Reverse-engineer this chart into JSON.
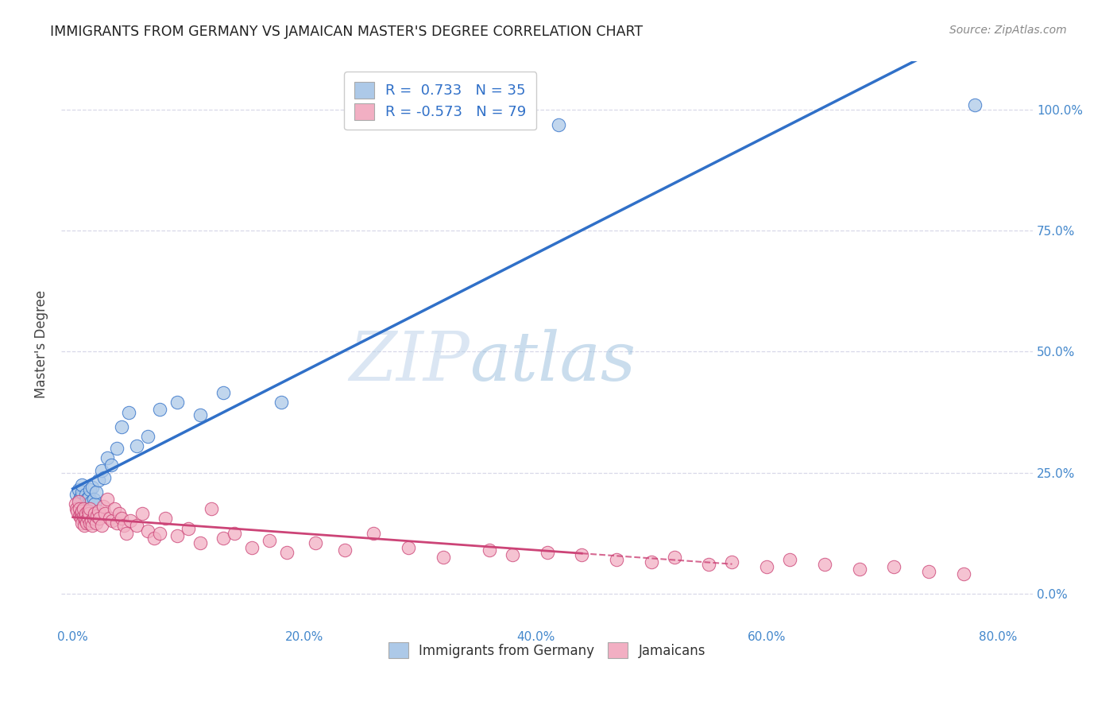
{
  "title": "IMMIGRANTS FROM GERMANY VS JAMAICAN MASTER'S DEGREE CORRELATION CHART",
  "source": "Source: ZipAtlas.com",
  "xlabel_ticks": [
    "0.0%",
    "20.0%",
    "40.0%",
    "60.0%",
    "80.0%"
  ],
  "xlabel_vals": [
    0.0,
    0.2,
    0.4,
    0.6,
    0.8
  ],
  "ylabel_ticks": [
    "0.0%",
    "25.0%",
    "50.0%",
    "75.0%",
    "100.0%"
  ],
  "ylabel_vals": [
    0.0,
    0.25,
    0.5,
    0.75,
    1.0
  ],
  "xlim": [
    -0.01,
    0.83
  ],
  "ylim": [
    -0.07,
    1.1
  ],
  "blue_R": 0.733,
  "blue_N": 35,
  "pink_R": -0.573,
  "pink_N": 79,
  "blue_color": "#adc9e8",
  "pink_color": "#f2afc3",
  "blue_line_color": "#3070c8",
  "pink_line_color": "#cc4477",
  "watermark_zip": "ZIP",
  "watermark_atlas": "atlas",
  "ylabel": "Master's Degree",
  "blue_scatter_x": [
    0.003,
    0.005,
    0.006,
    0.007,
    0.008,
    0.008,
    0.009,
    0.01,
    0.011,
    0.012,
    0.013,
    0.014,
    0.015,
    0.016,
    0.017,
    0.018,
    0.019,
    0.02,
    0.022,
    0.025,
    0.027,
    0.03,
    0.033,
    0.038,
    0.042,
    0.048,
    0.055,
    0.065,
    0.075,
    0.09,
    0.11,
    0.13,
    0.18,
    0.42,
    0.78
  ],
  "blue_scatter_y": [
    0.205,
    0.215,
    0.195,
    0.2,
    0.21,
    0.225,
    0.185,
    0.175,
    0.205,
    0.195,
    0.185,
    0.2,
    0.215,
    0.19,
    0.22,
    0.195,
    0.185,
    0.21,
    0.235,
    0.255,
    0.24,
    0.28,
    0.265,
    0.3,
    0.345,
    0.375,
    0.305,
    0.325,
    0.38,
    0.395,
    0.37,
    0.415,
    0.395,
    0.97,
    1.01
  ],
  "pink_scatter_x": [
    0.002,
    0.003,
    0.004,
    0.005,
    0.006,
    0.006,
    0.007,
    0.007,
    0.008,
    0.008,
    0.009,
    0.009,
    0.01,
    0.01,
    0.011,
    0.011,
    0.012,
    0.013,
    0.013,
    0.014,
    0.015,
    0.015,
    0.016,
    0.017,
    0.018,
    0.019,
    0.02,
    0.021,
    0.022,
    0.023,
    0.025,
    0.026,
    0.028,
    0.03,
    0.032,
    0.034,
    0.036,
    0.038,
    0.04,
    0.042,
    0.044,
    0.046,
    0.05,
    0.055,
    0.06,
    0.065,
    0.07,
    0.075,
    0.08,
    0.09,
    0.1,
    0.11,
    0.12,
    0.13,
    0.14,
    0.155,
    0.17,
    0.185,
    0.21,
    0.235,
    0.26,
    0.29,
    0.32,
    0.36,
    0.38,
    0.41,
    0.44,
    0.47,
    0.5,
    0.52,
    0.55,
    0.57,
    0.6,
    0.62,
    0.65,
    0.68,
    0.71,
    0.74,
    0.77
  ],
  "pink_scatter_y": [
    0.185,
    0.175,
    0.17,
    0.19,
    0.16,
    0.175,
    0.165,
    0.155,
    0.17,
    0.145,
    0.16,
    0.175,
    0.155,
    0.14,
    0.165,
    0.15,
    0.145,
    0.17,
    0.155,
    0.165,
    0.145,
    0.175,
    0.15,
    0.14,
    0.155,
    0.165,
    0.145,
    0.16,
    0.17,
    0.155,
    0.14,
    0.18,
    0.165,
    0.195,
    0.155,
    0.15,
    0.175,
    0.145,
    0.165,
    0.155,
    0.14,
    0.125,
    0.15,
    0.14,
    0.165,
    0.13,
    0.115,
    0.125,
    0.155,
    0.12,
    0.135,
    0.105,
    0.175,
    0.115,
    0.125,
    0.095,
    0.11,
    0.085,
    0.105,
    0.09,
    0.125,
    0.095,
    0.075,
    0.09,
    0.08,
    0.085,
    0.08,
    0.07,
    0.065,
    0.075,
    0.06,
    0.065,
    0.055,
    0.07,
    0.06,
    0.05,
    0.055,
    0.045,
    0.04
  ],
  "blue_line_x0": 0.0,
  "blue_line_x1": 0.82,
  "pink_line_x0": 0.0,
  "pink_line_solid_end": 0.44,
  "pink_line_dash_end": 0.57,
  "grid_color": "#d8d8e8",
  "tick_color": "#4488cc"
}
